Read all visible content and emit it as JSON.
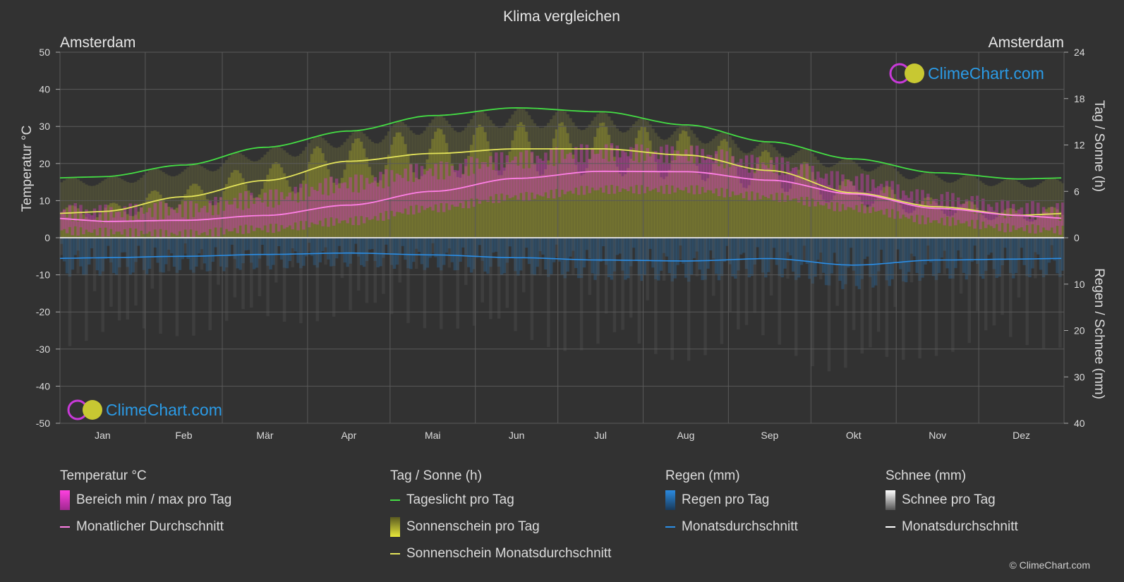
{
  "title": "Klima vergleichen",
  "location_left": "Amsterdam",
  "location_right": "Amsterdam",
  "logo_text": "ClimeChart.com",
  "copyright": "© ClimeChart.com",
  "colors": {
    "background": "#323232",
    "grid": "#5a5a5a",
    "daylight": "#44dd44",
    "sunshine_fill": "#9a9a2a",
    "sunshine_avg": "#e4e45a",
    "temp_range": "#d238c0",
    "temp_avg": "#ff7fe6",
    "rain": "#2a6fa8",
    "rain_avg": "#2b8ee6",
    "snow": "#888888",
    "logo_text": "#2b9be6"
  },
  "legend": {
    "temperature": {
      "header": "Temperatur °C",
      "items": [
        {
          "label": "Bereich min / max pro Tag",
          "kind": "box",
          "color": "#e0309e"
        },
        {
          "label": "Monatlicher Durchschnitt",
          "kind": "line",
          "color": "#ff7fe6"
        }
      ]
    },
    "sun": {
      "header": "Tag / Sonne (h)",
      "items": [
        {
          "label": "Tageslicht pro Tag",
          "kind": "line",
          "color": "#44dd44"
        },
        {
          "label": "Sonnenschein pro Tag",
          "kind": "box",
          "color": "#c8c832"
        },
        {
          "label": "Sonnenschein Monatsdurchschnitt",
          "kind": "line",
          "color": "#e4e45a"
        }
      ]
    },
    "rain": {
      "header": "Regen (mm)",
      "items": [
        {
          "label": "Regen pro Tag",
          "kind": "box",
          "color": "#2a8ae0"
        },
        {
          "label": "Monatsdurchschnitt",
          "kind": "line",
          "color": "#2b8ee6"
        }
      ]
    },
    "snow": {
      "header": "Schnee (mm)",
      "items": [
        {
          "label": "Schnee pro Tag",
          "kind": "box",
          "color": "#e6e6e6"
        },
        {
          "label": "Monatsdurchschnitt",
          "kind": "line",
          "color": "#ffffff"
        }
      ]
    }
  },
  "chart_data": {
    "type": "area",
    "title": "Klima vergleichen",
    "categories": [
      "Jan",
      "Feb",
      "Mär",
      "Apr",
      "Mai",
      "Jun",
      "Jul",
      "Aug",
      "Sep",
      "Okt",
      "Nov",
      "Dez"
    ],
    "y_left": {
      "label": "Temperatur °C",
      "ticks": [
        50,
        40,
        30,
        20,
        10,
        0,
        -10,
        -20,
        -30,
        -40,
        -50
      ],
      "lim": [
        -50,
        50
      ]
    },
    "y_right_top": {
      "label": "Tag / Sonne (h)",
      "ticks": [
        24,
        18,
        12,
        6,
        0
      ],
      "lim": [
        0,
        24
      ]
    },
    "y_right_bottom": {
      "label": "Regen / Schnee (mm)",
      "ticks": [
        0,
        10,
        20,
        30,
        40
      ],
      "lim": [
        0,
        40
      ]
    },
    "grid": true,
    "series": [
      {
        "name": "Tageslicht pro Tag",
        "axis": "sun_h",
        "values": [
          7.9,
          9.4,
          11.7,
          13.8,
          15.8,
          16.8,
          16.3,
          14.6,
          12.4,
          10.2,
          8.4,
          7.6
        ]
      },
      {
        "name": "Sonnenschein Monatsdurchschnitt",
        "axis": "sun_h",
        "values": [
          3.4,
          5.3,
          7.4,
          9.9,
          10.9,
          11.5,
          11.5,
          10.7,
          8.7,
          5.8,
          4.0,
          2.9
        ]
      },
      {
        "name": "Monatlicher Durchschnitt",
        "axis": "temp_c",
        "values": [
          4.4,
          4.7,
          6.0,
          8.8,
          12.5,
          16.0,
          17.9,
          17.8,
          15.5,
          11.8,
          7.9,
          6.0
        ]
      },
      {
        "name": "Bereich min / max pro Tag (max)",
        "axis": "temp_c",
        "values": [
          6.5,
          7.5,
          10.5,
          14.5,
          18.0,
          21.0,
          23.0,
          22.5,
          19.5,
          15.0,
          10.0,
          7.5
        ]
      },
      {
        "name": "Bereich min / max pro Tag (min)",
        "axis": "temp_c",
        "values": [
          1.5,
          1.0,
          2.5,
          4.5,
          8.0,
          11.0,
          13.0,
          13.0,
          11.0,
          8.0,
          4.5,
          2.5
        ]
      },
      {
        "name": "Regen Monatsdurchschnitt",
        "axis": "rain_mm",
        "values": [
          4.3,
          4.0,
          3.6,
          3.3,
          3.7,
          4.3,
          4.8,
          5.0,
          4.5,
          5.9,
          4.8,
          4.6
        ]
      }
    ]
  }
}
